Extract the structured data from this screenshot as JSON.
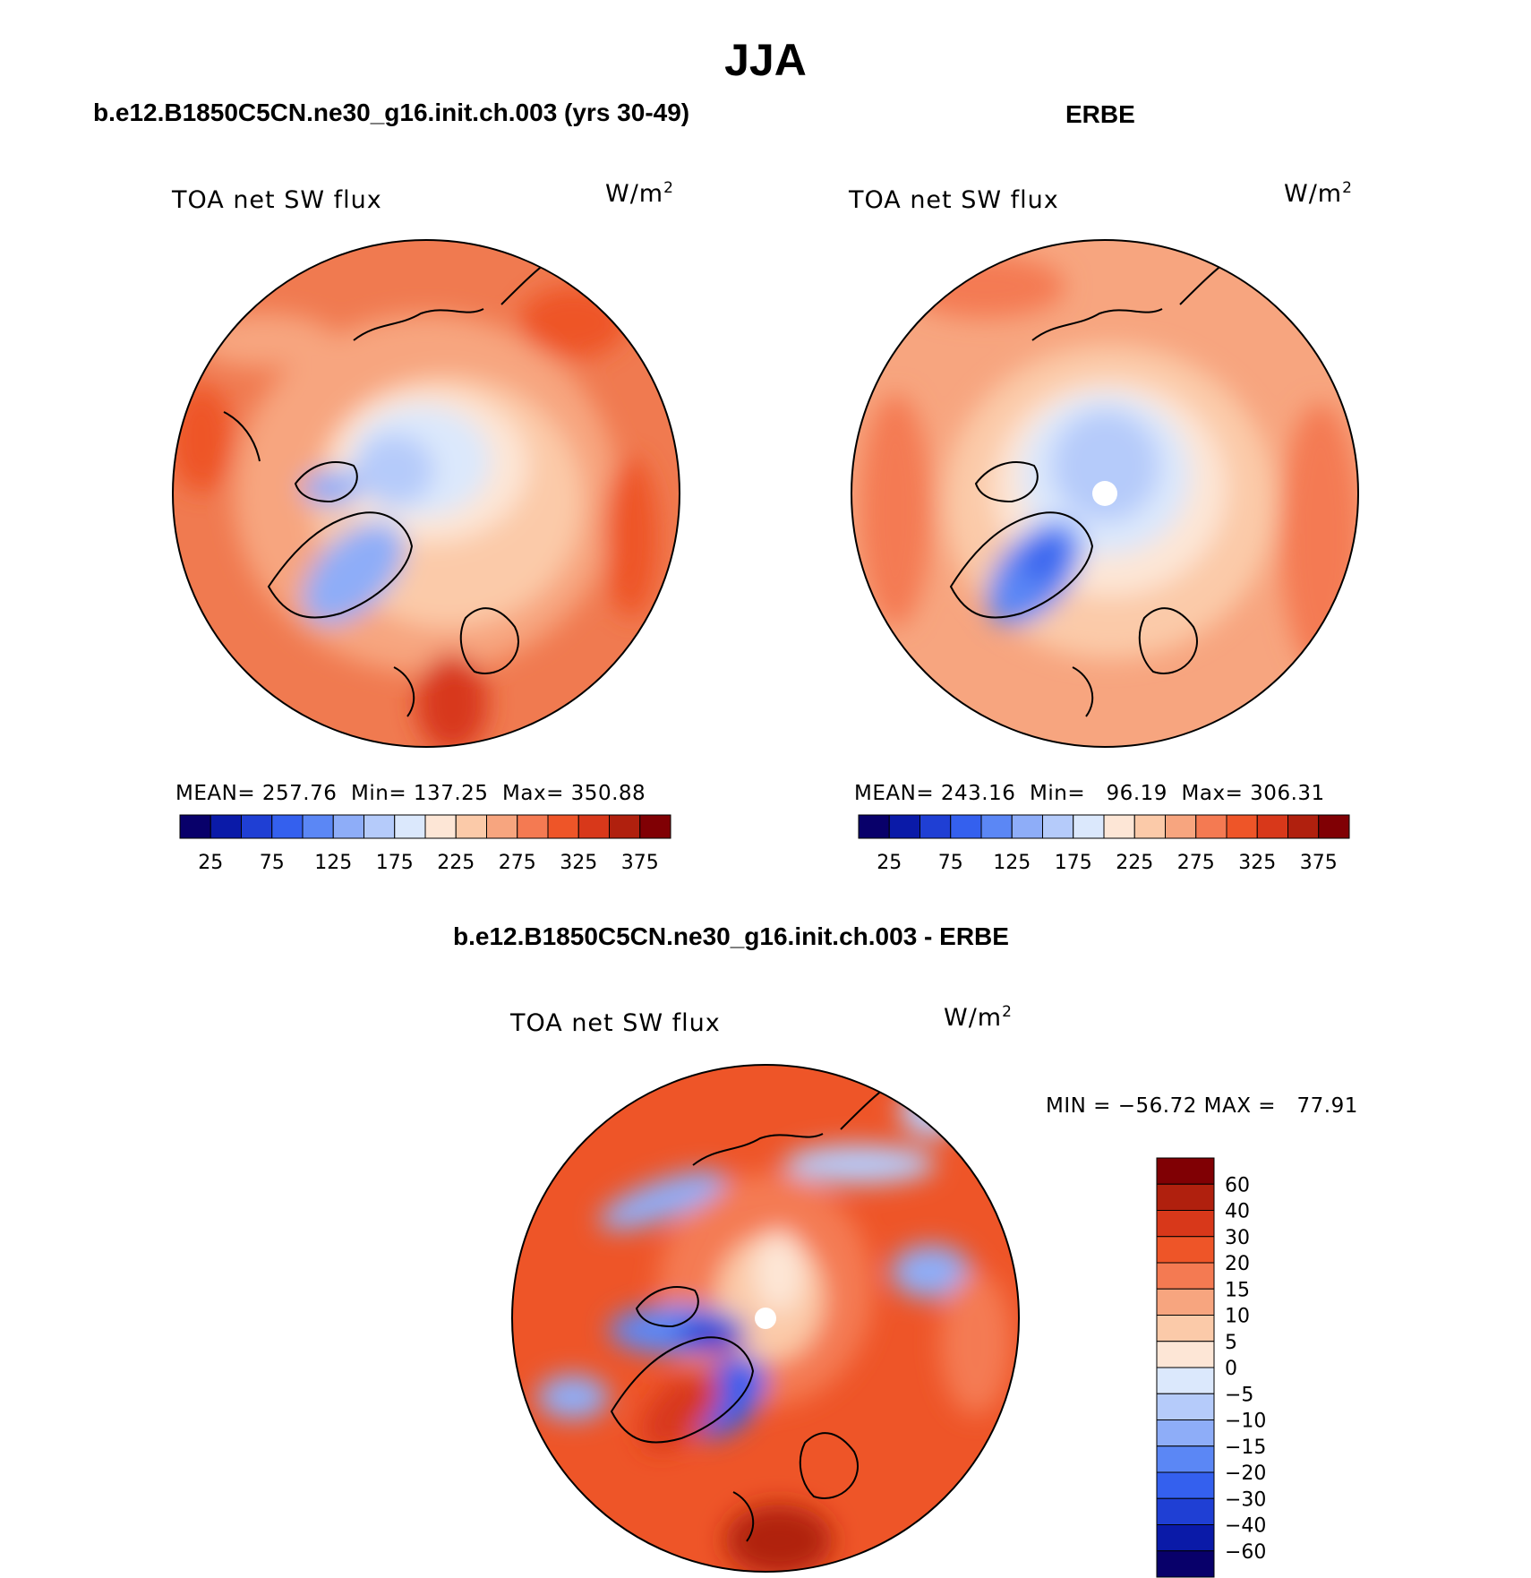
{
  "page": {
    "title": "JJA"
  },
  "panels": [
    {
      "title": "b.e12.B1850C5CN.ne30_g16.init.ch.003 (yrs 30-49)",
      "variable": "TOA net SW flux",
      "units": "W/m",
      "units_sup": "2",
      "stats": {
        "mean_label": "MEAN=",
        "mean": "257.76",
        "min_label": "Min=",
        "min": "137.25",
        "max_label": "Max=",
        "max": "350.88"
      },
      "has_pole_hole": false
    },
    {
      "title": "ERBE",
      "variable": "TOA net SW flux",
      "units": "W/m",
      "units_sup": "2",
      "stats": {
        "mean_label": "MEAN=",
        "mean": "243.16",
        "min_label": "Min=",
        "min": "96.19",
        "max_label": "Max=",
        "max": "306.31"
      },
      "has_pole_hole": true
    },
    {
      "title": "b.e12.B1850C5CN.ne30_g16.init.ch.003 - ERBE",
      "variable": "TOA net SW flux",
      "units": "W/m",
      "units_sup": "2",
      "minmax": {
        "label": "MIN = −56.72 MAX =",
        "max": "77.91"
      },
      "has_pole_hole": true
    }
  ],
  "chart_data": [
    {
      "type": "heatmap",
      "projection": "north polar stereographic",
      "title": "b.e12.B1850C5CN.ne30_g16.init.ch.003 (yrs 30-49)",
      "label": "TOA net SW flux",
      "units": "W/m2",
      "mean": 257.76,
      "min": 137.25,
      "max": 350.88,
      "colorbar_ticks": [
        25,
        75,
        125,
        175,
        225,
        275,
        325,
        375
      ],
      "colorbar_colors": [
        "#08006a",
        "#0a1aa8",
        "#1f3fd4",
        "#3460ee",
        "#5b87f5",
        "#8eadf8",
        "#b5cbfa",
        "#dbe8fc",
        "#fde6d6",
        "#fbcaa9",
        "#f7a57f",
        "#f47a52",
        "#ee5528",
        "#d8381a",
        "#b0200e",
        "#800004"
      ]
    },
    {
      "type": "heatmap",
      "projection": "north polar stereographic",
      "title": "ERBE",
      "label": "TOA net SW flux",
      "units": "W/m2",
      "mean": 243.16,
      "min": 96.19,
      "max": 306.31,
      "colorbar_ticks": [
        25,
        75,
        125,
        175,
        225,
        275,
        325,
        375
      ],
      "colorbar_colors": [
        "#08006a",
        "#0a1aa8",
        "#1f3fd4",
        "#3460ee",
        "#5b87f5",
        "#8eadf8",
        "#b5cbfa",
        "#dbe8fc",
        "#fde6d6",
        "#fbcaa9",
        "#f7a57f",
        "#f47a52",
        "#ee5528",
        "#d8381a",
        "#b0200e",
        "#800004"
      ]
    },
    {
      "type": "heatmap",
      "projection": "north polar stereographic",
      "title": "b.e12.B1850C5CN.ne30_g16.init.ch.003 - ERBE",
      "label": "TOA net SW flux",
      "units": "W/m2",
      "min": -56.72,
      "max": 77.91,
      "colorbar_labels": [
        "60",
        "40",
        "30",
        "20",
        "15",
        "10",
        "5",
        "0",
        "−5",
        "−10",
        "−15",
        "−20",
        "−30",
        "−40",
        "−60"
      ],
      "colorbar_colors": [
        "#800004",
        "#b0200e",
        "#d8381a",
        "#ee5528",
        "#f47a52",
        "#f7a57f",
        "#fbcaa9",
        "#fde6d6",
        "#dbe8fc",
        "#b5cbfa",
        "#8eadf8",
        "#5b87f5",
        "#3460ee",
        "#1f3fd4",
        "#0a1aa8",
        "#08006a"
      ]
    }
  ]
}
